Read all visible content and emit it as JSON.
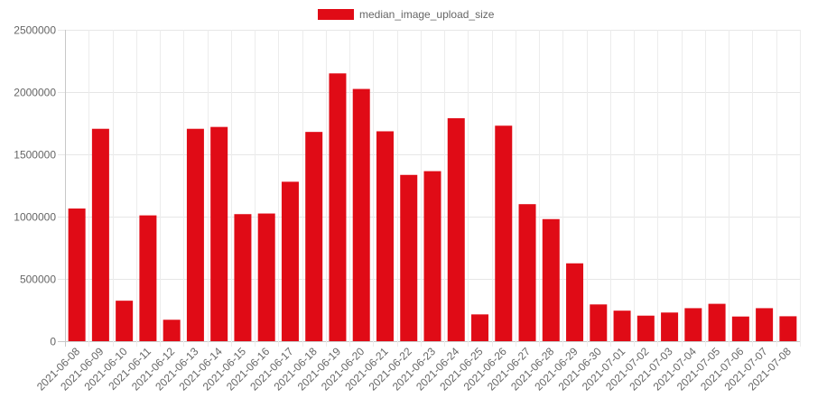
{
  "chart_data": {
    "type": "bar",
    "categories": [
      "2021-06-08",
      "2021-06-09",
      "2021-06-10",
      "2021-06-11",
      "2021-06-12",
      "2021-06-13",
      "2021-06-14",
      "2021-06-15",
      "2021-06-16",
      "2021-06-17",
      "2021-06-18",
      "2021-06-19",
      "2021-06-20",
      "2021-06-21",
      "2021-06-22",
      "2021-06-23",
      "2021-06-24",
      "2021-06-25",
      "2021-06-26",
      "2021-06-27",
      "2021-06-28",
      "2021-06-29",
      "2021-06-30",
      "2021-07-01",
      "2021-07-02",
      "2021-07-03",
      "2021-07-04",
      "2021-07-05",
      "2021-07-06",
      "2021-07-07",
      "2021-07-08"
    ],
    "series": [
      {
        "name": "median_image_upload_size",
        "color": "#e00b16",
        "values": [
          1065000,
          1705000,
          325000,
          1010000,
          172000,
          1705000,
          1720000,
          1020000,
          1025000,
          1280000,
          1680000,
          2150000,
          2025000,
          1685000,
          1335000,
          1365000,
          1790000,
          215000,
          1730000,
          1100000,
          980000,
          625000,
          295000,
          245000,
          205000,
          230000,
          265000,
          300000,
          198000,
          265000,
          200000
        ]
      }
    ],
    "ylim": [
      0,
      2500000
    ],
    "yticks": [
      "0",
      "500000",
      "1000000",
      "1500000",
      "2000000",
      "2500000"
    ],
    "grid": true,
    "legend_position": "top",
    "title": "",
    "xlabel": "",
    "ylabel": ""
  }
}
